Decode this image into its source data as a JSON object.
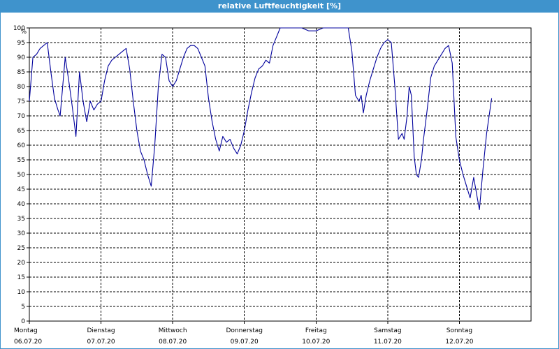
{
  "window": {
    "title": "relative Luftfeuchtigkeit [%]",
    "accent_color": "#3f93cc"
  },
  "chart_data": {
    "type": "line",
    "title": "relative Luftfeuchtigkeit [%]",
    "ylabel": "%",
    "xlabel": "",
    "ylim": [
      0,
      100
    ],
    "xlim": [
      0,
      7
    ],
    "grid": true,
    "yticks": [
      0,
      5,
      10,
      15,
      20,
      25,
      30,
      35,
      40,
      45,
      50,
      55,
      60,
      65,
      70,
      75,
      80,
      85,
      90,
      95,
      100
    ],
    "x_ticks": [
      {
        "day": "Montag",
        "date": "06.07.20"
      },
      {
        "day": "Dienstag",
        "date": "07.07.20"
      },
      {
        "day": "Mittwoch",
        "date": "08.07.20"
      },
      {
        "day": "Donnerstag",
        "date": "09.07.20"
      },
      {
        "day": "Freitag",
        "date": "10.07.20"
      },
      {
        "day": "Samstag",
        "date": "11.07.20"
      },
      {
        "day": "Sonntag",
        "date": "12.07.20"
      }
    ],
    "series": [
      {
        "color": "#00009c",
        "x_unit": "days since Montag 06.07.20 00:00",
        "points": [
          [
            0.0,
            75
          ],
          [
            0.05,
            90
          ],
          [
            0.1,
            91
          ],
          [
            0.15,
            93
          ],
          [
            0.2,
            94
          ],
          [
            0.25,
            95
          ],
          [
            0.3,
            85
          ],
          [
            0.35,
            76
          ],
          [
            0.4,
            72
          ],
          [
            0.43,
            70
          ],
          [
            0.5,
            90
          ],
          [
            0.55,
            82
          ],
          [
            0.6,
            73
          ],
          [
            0.65,
            63
          ],
          [
            0.7,
            85
          ],
          [
            0.75,
            75
          ],
          [
            0.8,
            68
          ],
          [
            0.85,
            75
          ],
          [
            0.9,
            72
          ],
          [
            0.95,
            74
          ],
          [
            1.0,
            75
          ],
          [
            1.05,
            82
          ],
          [
            1.1,
            87
          ],
          [
            1.15,
            89
          ],
          [
            1.2,
            90
          ],
          [
            1.25,
            91
          ],
          [
            1.3,
            92
          ],
          [
            1.35,
            93
          ],
          [
            1.4,
            86
          ],
          [
            1.45,
            75
          ],
          [
            1.5,
            65
          ],
          [
            1.55,
            58
          ],
          [
            1.6,
            55
          ],
          [
            1.65,
            50
          ],
          [
            1.7,
            46
          ],
          [
            1.75,
            60
          ],
          [
            1.8,
            80
          ],
          [
            1.85,
            91
          ],
          [
            1.9,
            90
          ],
          [
            1.95,
            82
          ],
          [
            2.0,
            80
          ],
          [
            2.05,
            82
          ],
          [
            2.1,
            86
          ],
          [
            2.15,
            90
          ],
          [
            2.2,
            93
          ],
          [
            2.25,
            94
          ],
          [
            2.3,
            94
          ],
          [
            2.35,
            93
          ],
          [
            2.4,
            90
          ],
          [
            2.45,
            87
          ],
          [
            2.5,
            76
          ],
          [
            2.55,
            68
          ],
          [
            2.6,
            62
          ],
          [
            2.65,
            58
          ],
          [
            2.7,
            63
          ],
          [
            2.75,
            61
          ],
          [
            2.8,
            62
          ],
          [
            2.85,
            59
          ],
          [
            2.9,
            57
          ],
          [
            2.95,
            60
          ],
          [
            3.0,
            65
          ],
          [
            3.05,
            72
          ],
          [
            3.1,
            78
          ],
          [
            3.15,
            83
          ],
          [
            3.2,
            86
          ],
          [
            3.25,
            87
          ],
          [
            3.3,
            89
          ],
          [
            3.35,
            88
          ],
          [
            3.4,
            94
          ],
          [
            3.45,
            97
          ],
          [
            3.5,
            100
          ],
          [
            3.6,
            100
          ],
          [
            3.7,
            100
          ],
          [
            3.8,
            100
          ],
          [
            3.9,
            99
          ],
          [
            4.0,
            99
          ],
          [
            4.1,
            100
          ],
          [
            4.2,
            100
          ],
          [
            4.3,
            100
          ],
          [
            4.4,
            100
          ],
          [
            4.45,
            100
          ],
          [
            4.5,
            92
          ],
          [
            4.55,
            77
          ],
          [
            4.6,
            75
          ],
          [
            4.63,
            77
          ],
          [
            4.66,
            71
          ],
          [
            4.7,
            77
          ],
          [
            4.75,
            82
          ],
          [
            4.8,
            86
          ],
          [
            4.85,
            90
          ],
          [
            4.9,
            93
          ],
          [
            4.95,
            95
          ],
          [
            5.0,
            96
          ],
          [
            5.05,
            95
          ],
          [
            5.1,
            80
          ],
          [
            5.15,
            62
          ],
          [
            5.2,
            64
          ],
          [
            5.23,
            62
          ],
          [
            5.27,
            70
          ],
          [
            5.3,
            80
          ],
          [
            5.33,
            77
          ],
          [
            5.37,
            56
          ],
          [
            5.4,
            50
          ],
          [
            5.43,
            49
          ],
          [
            5.47,
            55
          ],
          [
            5.5,
            62
          ],
          [
            5.55,
            72
          ],
          [
            5.6,
            83
          ],
          [
            5.65,
            87
          ],
          [
            5.7,
            89
          ],
          [
            5.75,
            91
          ],
          [
            5.8,
            93
          ],
          [
            5.85,
            94
          ],
          [
            5.9,
            88
          ],
          [
            5.95,
            63
          ],
          [
            6.0,
            55
          ],
          [
            6.05,
            50
          ],
          [
            6.1,
            46
          ],
          [
            6.15,
            42
          ],
          [
            6.2,
            49
          ],
          [
            6.25,
            42
          ],
          [
            6.28,
            38
          ],
          [
            6.33,
            52
          ],
          [
            6.38,
            64
          ],
          [
            6.45,
            76
          ]
        ]
      }
    ]
  }
}
